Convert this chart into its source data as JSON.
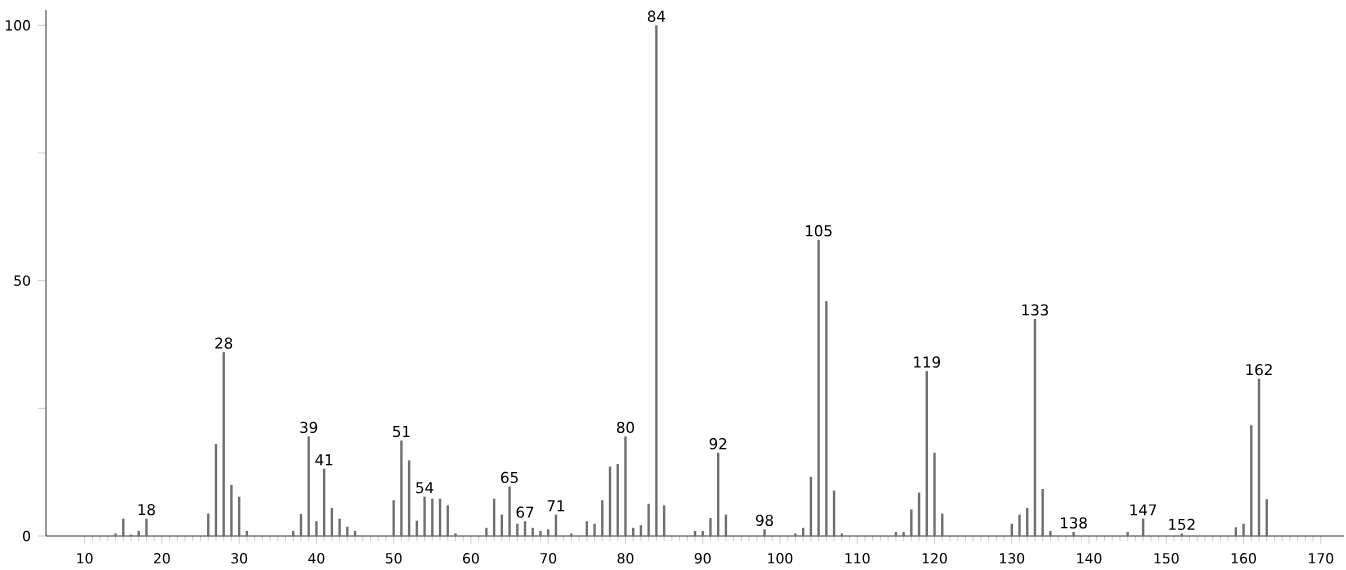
{
  "chart_data": {
    "type": "bar",
    "color": "#6e6e6e",
    "x": [
      14,
      15,
      16,
      17,
      18,
      26,
      27,
      28,
      29,
      30,
      31,
      37,
      38,
      39,
      40,
      41,
      42,
      43,
      44,
      45,
      50,
      51,
      52,
      53,
      54,
      55,
      56,
      57,
      58,
      62,
      63,
      64,
      65,
      66,
      67,
      68,
      69,
      70,
      71,
      73,
      75,
      76,
      77,
      78,
      79,
      80,
      81,
      82,
      83,
      84,
      85,
      89,
      90,
      91,
      92,
      93,
      98,
      102,
      103,
      104,
      105,
      106,
      107,
      108,
      115,
      116,
      117,
      118,
      119,
      120,
      121,
      130,
      131,
      132,
      133,
      134,
      135,
      138,
      145,
      147,
      152,
      159,
      160,
      161,
      162,
      163
    ],
    "values": [
      0.5,
      3.4,
      0.3,
      1,
      3.4,
      4.4,
      18,
      36,
      10,
      7.7,
      1,
      1,
      4.3,
      19.5,
      2.9,
      13.2,
      5.5,
      3.4,
      1.8,
      1,
      7,
      18.7,
      14.8,
      3,
      7.7,
      7.3,
      7.3,
      6,
      0.5,
      1.6,
      7.3,
      4.2,
      9.7,
      2.4,
      2.9,
      1.6,
      1,
      1.3,
      4.2,
      0.5,
      2.9,
      2.4,
      7,
      13.6,
      14.1,
      19.5,
      1.6,
      2.1,
      6.3,
      100,
      6,
      1,
      1,
      3.5,
      16.3,
      4.2,
      1.3,
      0.5,
      1.6,
      11.6,
      58,
      46,
      8.9,
      0.5,
      0.8,
      0.8,
      5.2,
      8.5,
      32.3,
      16.3,
      4.4,
      2.4,
      4.2,
      5.5,
      42.5,
      9.2,
      1,
      0.8,
      0.8,
      3.4,
      0.5,
      1.7,
      2.4,
      21.7,
      30.8,
      7.2
    ],
    "xlim": [
      5,
      173
    ],
    "xticks": [
      10,
      20,
      30,
      40,
      50,
      60,
      70,
      80,
      90,
      100,
      110,
      120,
      130,
      140,
      150,
      160,
      170
    ],
    "ylim": [
      0,
      103
    ],
    "yticks": [
      0,
      {
        "value": 25,
        "label": null
      },
      50,
      {
        "value": 75,
        "label": null
      },
      100
    ],
    "annotations": [
      {
        "text": "18",
        "x": 18,
        "y": 3.4
      },
      {
        "text": "28",
        "x": 28,
        "y": 36
      },
      {
        "text": "39",
        "x": 39,
        "y": 19.5
      },
      {
        "text": "41",
        "x": 41,
        "y": 13.2
      },
      {
        "text": "51",
        "x": 51,
        "y": 18.7
      },
      {
        "text": "54",
        "x": 54,
        "y": 7.7
      },
      {
        "text": "65",
        "x": 65,
        "y": 9.7
      },
      {
        "text": "67",
        "x": 67,
        "y": 2.9
      },
      {
        "text": "71",
        "x": 71,
        "y": 4.2
      },
      {
        "text": "80",
        "x": 80,
        "y": 19.5
      },
      {
        "text": "84",
        "x": 84,
        "y": 100
      },
      {
        "text": "92",
        "x": 92,
        "y": 16.3
      },
      {
        "text": "98",
        "x": 98,
        "y": 1.3
      },
      {
        "text": "105",
        "x": 105,
        "y": 58
      },
      {
        "text": "119",
        "x": 119,
        "y": 32.3
      },
      {
        "text": "133",
        "x": 133,
        "y": 42.5
      },
      {
        "text": "138",
        "x": 138,
        "y": 0.8
      },
      {
        "text": "147",
        "x": 147,
        "y": 3.4
      },
      {
        "text": "152",
        "x": 152,
        "y": 0.5
      },
      {
        "text": "162",
        "x": 162,
        "y": 30.8
      }
    ]
  }
}
